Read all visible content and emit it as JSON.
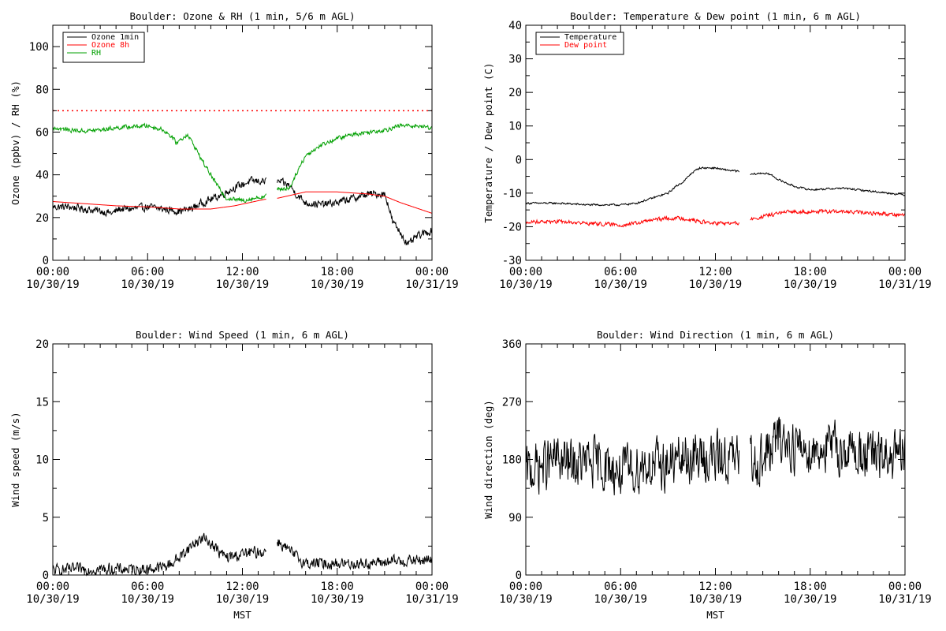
{
  "chart_data": [
    {
      "id": "ozone_rh",
      "type": "line",
      "title": "Boulder: Ozone & RH (1 min, 5/6 m AGL)",
      "xlabel": "",
      "ylabel": "Ozone (ppbv) / RH (%)",
      "ylim": [
        0,
        110
      ],
      "yticks": [
        0,
        20,
        40,
        60,
        80,
        100
      ],
      "xlim": [
        0,
        24
      ],
      "xticks": [
        0,
        6,
        12,
        18,
        24
      ],
      "xtick_labels": [
        [
          "00:00",
          "10/30/19"
        ],
        [
          "06:00",
          "10/30/19"
        ],
        [
          "12:00",
          "10/30/19"
        ],
        [
          "18:00",
          "10/30/19"
        ],
        [
          "00:00",
          "10/31/19"
        ]
      ],
      "legend": "top-left",
      "reference_lines": [
        {
          "y": 70,
          "color": "#ff0000",
          "style": "dotted"
        }
      ],
      "series": [
        {
          "name": "Ozone 1min",
          "color": "#000000",
          "noise": 1.6,
          "gaps": [
            [
              13.5,
              14.2
            ]
          ],
          "points": [
            [
              0,
              25
            ],
            [
              1,
              25
            ],
            [
              2,
              24
            ],
            [
              3,
              23
            ],
            [
              3.8,
              22
            ],
            [
              4.2,
              24
            ],
            [
              5,
              24
            ],
            [
              6,
              25
            ],
            [
              7,
              24
            ],
            [
              8,
              23
            ],
            [
              8.7,
              24
            ],
            [
              9.5,
              27
            ],
            [
              10.5,
              30
            ],
            [
              11.5,
              34
            ],
            [
              12.5,
              37
            ],
            [
              13.4,
              37
            ],
            [
              14.2,
              37
            ],
            [
              15,
              35
            ],
            [
              15.4,
              31
            ],
            [
              16,
              27
            ],
            [
              17,
              26
            ],
            [
              18,
              27
            ],
            [
              19,
              29
            ],
            [
              20,
              31
            ],
            [
              21,
              31
            ],
            [
              21.2,
              27
            ],
            [
              21.5,
              18
            ],
            [
              22,
              13
            ],
            [
              22.5,
              7
            ],
            [
              23,
              11
            ],
            [
              24,
              14
            ]
          ]
        },
        {
          "name": "Ozone 8h",
          "color": "#ff0000",
          "noise": 0,
          "gaps": [
            [
              13.5,
              14.2
            ]
          ],
          "points": [
            [
              0,
              27.5
            ],
            [
              2,
              26.5
            ],
            [
              4,
              25.5
            ],
            [
              6,
              25
            ],
            [
              8,
              24
            ],
            [
              10,
              24
            ],
            [
              11.5,
              25.5
            ],
            [
              13.4,
              28.5
            ],
            [
              14.2,
              29
            ],
            [
              16,
              32
            ],
            [
              18,
              32
            ],
            [
              20,
              31
            ],
            [
              21,
              30
            ],
            [
              22,
              27
            ],
            [
              23,
              24.5
            ],
            [
              24,
              22
            ]
          ]
        },
        {
          "name": "RH",
          "color": "#00a000",
          "noise": 0.9,
          "gaps": [
            [
              13.5,
              14.2
            ]
          ],
          "points": [
            [
              0,
              62
            ],
            [
              1,
              61
            ],
            [
              2,
              60.5
            ],
            [
              3,
              61
            ],
            [
              4,
              62
            ],
            [
              5,
              62.5
            ],
            [
              6,
              63
            ],
            [
              7,
              61
            ],
            [
              7.5,
              58
            ],
            [
              7.8,
              55
            ],
            [
              8.2,
              57
            ],
            [
              8.5,
              59
            ],
            [
              9,
              53
            ],
            [
              9.5,
              46
            ],
            [
              10,
              40
            ],
            [
              10.5,
              34
            ],
            [
              11,
              29
            ],
            [
              12,
              28
            ],
            [
              13.4,
              30
            ],
            [
              14.2,
              33
            ],
            [
              15,
              34
            ],
            [
              15.5,
              42
            ],
            [
              16,
              49
            ],
            [
              17,
              54
            ],
            [
              18,
              57
            ],
            [
              19,
              59
            ],
            [
              20,
              60
            ],
            [
              21,
              61
            ],
            [
              22,
              63
            ],
            [
              23,
              63
            ],
            [
              24,
              62
            ]
          ]
        }
      ]
    },
    {
      "id": "temp_dew",
      "type": "line",
      "title": "Boulder: Temperature & Dew point (1 min, 6 m AGL)",
      "xlabel": "",
      "ylabel": "Temperature / Dew point (C)",
      "ylim": [
        -30,
        40
      ],
      "yticks": [
        -30,
        -20,
        -10,
        0,
        10,
        20,
        30,
        40
      ],
      "xlim": [
        0,
        24
      ],
      "xticks": [
        0,
        6,
        12,
        18,
        24
      ],
      "xtick_labels": [
        [
          "00:00",
          "10/30/19"
        ],
        [
          "06:00",
          "10/30/19"
        ],
        [
          "12:00",
          "10/30/19"
        ],
        [
          "18:00",
          "10/30/19"
        ],
        [
          "00:00",
          "10/31/19"
        ]
      ],
      "legend": "top-left",
      "series": [
        {
          "name": "Temperature",
          "color": "#000000",
          "noise": 0.25,
          "gaps": [
            [
              13.5,
              14.2
            ]
          ],
          "points": [
            [
              0,
              -13
            ],
            [
              2,
              -13
            ],
            [
              4,
              -13.5
            ],
            [
              6,
              -13.5
            ],
            [
              7,
              -13
            ],
            [
              8,
              -11.5
            ],
            [
              9,
              -10
            ],
            [
              9.5,
              -8
            ],
            [
              10,
              -6.5
            ],
            [
              10.5,
              -4
            ],
            [
              11,
              -2.5
            ],
            [
              12,
              -2.5
            ],
            [
              12.5,
              -3
            ],
            [
              13.4,
              -3.5
            ],
            [
              14.2,
              -4.5
            ],
            [
              15,
              -4
            ],
            [
              15.5,
              -4.5
            ],
            [
              16,
              -6
            ],
            [
              17,
              -8
            ],
            [
              18,
              -9
            ],
            [
              20,
              -8.5
            ],
            [
              22,
              -9.5
            ],
            [
              24,
              -10.5
            ]
          ]
        },
        {
          "name": "Dew point",
          "color": "#ff0000",
          "noise": 0.5,
          "gaps": [
            [
              13.5,
              14.2
            ]
          ],
          "points": [
            [
              0,
              -18.5
            ],
            [
              2,
              -18.5
            ],
            [
              4,
              -19
            ],
            [
              6,
              -19.5
            ],
            [
              7,
              -19
            ],
            [
              8,
              -18
            ],
            [
              9,
              -17.5
            ],
            [
              10,
              -17.5
            ],
            [
              11,
              -18.5
            ],
            [
              12,
              -19
            ],
            [
              13.4,
              -19
            ],
            [
              14.2,
              -18
            ],
            [
              15,
              -17
            ],
            [
              16,
              -16
            ],
            [
              17,
              -15.5
            ],
            [
              18,
              -15.5
            ],
            [
              20,
              -15.5
            ],
            [
              22,
              -16
            ],
            [
              24,
              -16.5
            ]
          ]
        }
      ]
    },
    {
      "id": "wind_speed",
      "type": "line",
      "title": "Boulder: Wind Speed (1 min, 6 m AGL)",
      "xlabel": "MST",
      "ylabel": "Wind speed (m/s)",
      "ylim": [
        0,
        20
      ],
      "yticks": [
        0,
        5,
        10,
        15,
        20
      ],
      "xlim": [
        0,
        24
      ],
      "xticks": [
        0,
        6,
        12,
        18,
        24
      ],
      "xtick_labels": [
        [
          "00:00",
          "10/30/19"
        ],
        [
          "06:00",
          "10/30/19"
        ],
        [
          "12:00",
          "10/30/19"
        ],
        [
          "18:00",
          "10/30/19"
        ],
        [
          "00:00",
          "10/31/19"
        ]
      ],
      "legend": "none",
      "series": [
        {
          "name": "",
          "color": "#000000",
          "noise": 0.45,
          "gaps": [
            [
              13.5,
              14.2
            ]
          ],
          "points": [
            [
              0,
              0.4
            ],
            [
              2,
              0.5
            ],
            [
              4,
              0.5
            ],
            [
              6,
              0.5
            ],
            [
              7,
              0.7
            ],
            [
              7.5,
              1.0
            ],
            [
              8,
              1.5
            ],
            [
              8.5,
              2.2
            ],
            [
              9,
              2.8
            ],
            [
              9.5,
              3.2
            ],
            [
              10,
              2.8
            ],
            [
              10.5,
              2.0
            ],
            [
              11,
              1.5
            ],
            [
              12,
              1.8
            ],
            [
              13,
              2.0
            ],
            [
              13.4,
              2.0
            ],
            [
              14.2,
              3.0
            ],
            [
              15,
              2.0
            ],
            [
              16,
              1.0
            ],
            [
              18,
              1.0
            ],
            [
              20,
              1.0
            ],
            [
              22,
              1.2
            ],
            [
              24,
              1.3
            ]
          ]
        }
      ]
    },
    {
      "id": "wind_dir",
      "type": "line",
      "title": "Boulder: Wind Direction (1 min, 6 m AGL)",
      "xlabel": "MST",
      "ylabel": "Wind direction (deg)",
      "ylim": [
        0,
        360
      ],
      "yticks": [
        0,
        90,
        180,
        270,
        360
      ],
      "xlim": [
        0,
        24
      ],
      "xticks": [
        0,
        6,
        12,
        18,
        24
      ],
      "xtick_labels": [
        [
          "00:00",
          "10/30/19"
        ],
        [
          "06:00",
          "10/30/19"
        ],
        [
          "12:00",
          "10/30/19"
        ],
        [
          "18:00",
          "10/30/19"
        ],
        [
          "00:00",
          "10/31/19"
        ]
      ],
      "legend": "none",
      "series": [
        {
          "name": "",
          "color": "#000000",
          "noise": 35,
          "gaps": [
            [
              13.5,
              14.2
            ]
          ],
          "points": [
            [
              0,
              160
            ],
            [
              2,
              180
            ],
            [
              3,
              170
            ],
            [
              4,
              175
            ],
            [
              5,
              170
            ],
            [
              6,
              160
            ],
            [
              7,
              165
            ],
            [
              7.5,
              175
            ],
            [
              8,
              170
            ],
            [
              9,
              172
            ],
            [
              10,
              180
            ],
            [
              11,
              182
            ],
            [
              12,
              182
            ],
            [
              13.4,
              180
            ],
            [
              14.2,
              178
            ],
            [
              15,
              180
            ],
            [
              15.5,
              195
            ],
            [
              16,
              215
            ],
            [
              17,
              200
            ],
            [
              18,
              195
            ],
            [
              19,
              200
            ],
            [
              20,
              195
            ],
            [
              21,
              190
            ],
            [
              22,
              185
            ],
            [
              23,
              180
            ],
            [
              24,
              185
            ]
          ]
        }
      ]
    }
  ]
}
